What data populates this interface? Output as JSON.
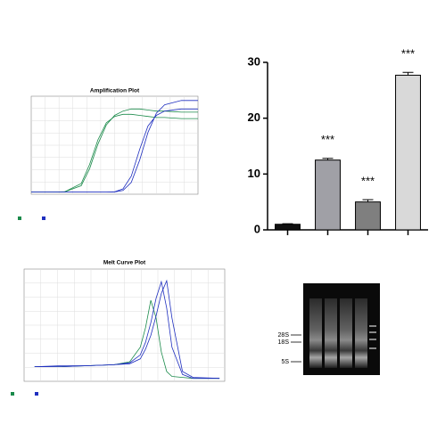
{
  "chart_data": [
    {
      "type": "line",
      "title": "Amplification Plot",
      "x": [
        0,
        4,
        8,
        12,
        14,
        16,
        18,
        20,
        22,
        24,
        26,
        28,
        30,
        32,
        36,
        40
      ],
      "xlim": [
        0,
        40
      ],
      "ylim": [
        -0.02,
        0.9
      ],
      "series": [
        {
          "color": "#1a8a4a",
          "values": [
            0,
            0,
            0.002,
            0.06,
            0.22,
            0.45,
            0.63,
            0.72,
            0.76,
            0.78,
            0.78,
            0.77,
            0.76,
            0.76,
            0.75,
            0.75
          ]
        },
        {
          "color": "#1a8a4a",
          "values": [
            0,
            0,
            0.003,
            0.08,
            0.26,
            0.49,
            0.65,
            0.71,
            0.73,
            0.73,
            0.72,
            0.71,
            0.7,
            0.7,
            0.69,
            0.69
          ]
        },
        {
          "color": "#1f2fbf",
          "values": [
            0,
            0,
            0,
            0,
            0,
            0,
            0,
            0.003,
            0.03,
            0.15,
            0.4,
            0.62,
            0.72,
            0.76,
            0.78,
            0.78
          ]
        },
        {
          "color": "#1f2fbf",
          "values": [
            0,
            0,
            0,
            0,
            0,
            0,
            0,
            0.001,
            0.015,
            0.09,
            0.3,
            0.56,
            0.74,
            0.82,
            0.86,
            0.86
          ]
        }
      ]
    },
    {
      "type": "bar",
      "categories": [
        null,
        null,
        null,
        null
      ],
      "values": [
        1,
        12.5,
        5,
        27.7
      ],
      "errors": [
        0.1,
        0.3,
        0.4,
        0.5
      ],
      "annotations": [
        null,
        "***",
        "***",
        "***"
      ],
      "colors": [
        "#111111",
        "#a0a0a6",
        "#7f7f7f",
        "#d9d9d9"
      ],
      "ylim": [
        0,
        30
      ],
      "yticks": [
        0,
        10,
        20,
        30
      ]
    },
    {
      "type": "line",
      "title": "Melt Curve Plot",
      "x": [
        60,
        65,
        70,
        75,
        78,
        80,
        81,
        82,
        83,
        84,
        85,
        86,
        88,
        90,
        95
      ],
      "xlim": [
        58,
        96
      ],
      "ylim": [
        -0.05,
        1.1
      ],
      "series": [
        {
          "color": "#1a8a4a",
          "values": [
            0.1,
            0.1,
            0.11,
            0.12,
            0.15,
            0.3,
            0.5,
            0.78,
            0.6,
            0.25,
            0.05,
            0,
            -0.01,
            -0.02,
            -0.02
          ]
        },
        {
          "color": "#1f2fbf",
          "values": [
            0.1,
            0.11,
            0.11,
            0.12,
            0.14,
            0.22,
            0.35,
            0.55,
            0.8,
            0.97,
            0.7,
            0.3,
            0.02,
            -0.02,
            -0.02
          ]
        },
        {
          "color": "#1f2fbf",
          "values": [
            0.1,
            0.1,
            0.11,
            0.12,
            0.13,
            0.18,
            0.28,
            0.42,
            0.62,
            0.85,
            0.98,
            0.6,
            0.05,
            -0.01,
            -0.02
          ]
        }
      ]
    }
  ],
  "gel": {
    "labels": [
      "28S",
      "18S",
      "5S"
    ]
  }
}
